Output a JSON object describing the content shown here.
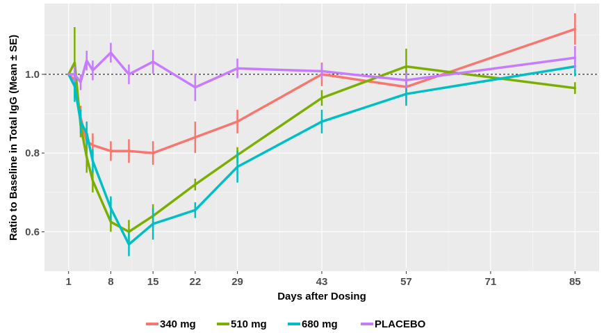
{
  "chart_data": {
    "type": "line",
    "xlabel": "Days after Dosing",
    "ylabel": "Ratio to Baseline in Total IgG (Mean ± SE)",
    "x_ticks": [
      1,
      8,
      15,
      22,
      29,
      43,
      57,
      71,
      85
    ],
    "y_ticks": [
      0.6,
      0.8,
      1.0
    ],
    "y_tick_labels": [
      "0.6",
      "0.8",
      "1.0"
    ],
    "xlim": [
      -3,
      89
    ],
    "ylim": [
      0.5,
      1.18
    ],
    "reference_line": 1.0,
    "grid": true,
    "legend_position": "bottom",
    "series": [
      {
        "name": "340 mg",
        "color": "#F8766D",
        "points": [
          {
            "x": 1,
            "y": 1.0,
            "se": 0.0
          },
          {
            "x": 2,
            "y": 0.985,
            "se": 0.02
          },
          {
            "x": 3,
            "y": 0.89,
            "se": 0.03
          },
          {
            "x": 4,
            "y": 0.83,
            "se": 0.03
          },
          {
            "x": 5,
            "y": 0.82,
            "se": 0.03
          },
          {
            "x": 8,
            "y": 0.805,
            "se": 0.025
          },
          {
            "x": 11,
            "y": 0.805,
            "se": 0.03
          },
          {
            "x": 15,
            "y": 0.8,
            "se": 0.03
          },
          {
            "x": 22,
            "y": 0.84,
            "se": 0.04
          },
          {
            "x": 29,
            "y": 0.88,
            "se": 0.03
          },
          {
            "x": 43,
            "y": 1.0,
            "se": 0.03
          },
          {
            "x": 57,
            "y": 0.968,
            "se": 0.04
          },
          {
            "x": 85,
            "y": 1.115,
            "se": 0.04
          }
        ]
      },
      {
        "name": "510 mg",
        "color": "#7CAE00",
        "points": [
          {
            "x": 1,
            "y": 1.0,
            "se": 0.0
          },
          {
            "x": 2,
            "y": 1.03,
            "se": 0.09
          },
          {
            "x": 3,
            "y": 0.87,
            "se": 0.03
          },
          {
            "x": 4,
            "y": 0.79,
            "se": 0.04
          },
          {
            "x": 5,
            "y": 0.73,
            "se": 0.03
          },
          {
            "x": 8,
            "y": 0.625,
            "se": 0.025
          },
          {
            "x": 11,
            "y": 0.6,
            "se": 0.03
          },
          {
            "x": 15,
            "y": 0.64,
            "se": 0.03
          },
          {
            "x": 22,
            "y": 0.72,
            "se": 0.015
          },
          {
            "x": 29,
            "y": 0.795,
            "se": 0.02
          },
          {
            "x": 43,
            "y": 0.94,
            "se": 0.02
          },
          {
            "x": 57,
            "y": 1.02,
            "se": 0.045
          },
          {
            "x": 85,
            "y": 0.965,
            "se": 0.015
          }
        ]
      },
      {
        "name": "680 mg",
        "color": "#00BFC4",
        "points": [
          {
            "x": 1,
            "y": 1.0,
            "se": 0.0
          },
          {
            "x": 2,
            "y": 0.97,
            "se": 0.04
          },
          {
            "x": 3,
            "y": 0.88,
            "se": 0.03
          },
          {
            "x": 4,
            "y": 0.85,
            "se": 0.03
          },
          {
            "x": 5,
            "y": 0.78,
            "se": 0.03
          },
          {
            "x": 8,
            "y": 0.66,
            "se": 0.03
          },
          {
            "x": 11,
            "y": 0.568,
            "se": 0.03
          },
          {
            "x": 15,
            "y": 0.62,
            "se": 0.04
          },
          {
            "x": 22,
            "y": 0.655,
            "se": 0.02
          },
          {
            "x": 29,
            "y": 0.765,
            "se": 0.04
          },
          {
            "x": 43,
            "y": 0.88,
            "se": 0.03
          },
          {
            "x": 57,
            "y": 0.95,
            "se": 0.03
          },
          {
            "x": 85,
            "y": 1.02,
            "se": 0.025
          }
        ]
      },
      {
        "name": "PLACEBO",
        "color": "#C77CFF",
        "points": [
          {
            "x": 1,
            "y": 1.0,
            "se": 0.0
          },
          {
            "x": 2,
            "y": 1.0,
            "se": 0.02
          },
          {
            "x": 3,
            "y": 0.98,
            "se": 0.02
          },
          {
            "x": 4,
            "y": 1.035,
            "se": 0.025
          },
          {
            "x": 5,
            "y": 1.01,
            "se": 0.025
          },
          {
            "x": 8,
            "y": 1.055,
            "se": 0.025
          },
          {
            "x": 11,
            "y": 1.0,
            "se": 0.025
          },
          {
            "x": 15,
            "y": 1.032,
            "se": 0.03
          },
          {
            "x": 22,
            "y": 0.967,
            "se": 0.035
          },
          {
            "x": 29,
            "y": 1.015,
            "se": 0.025
          },
          {
            "x": 43,
            "y": 1.008,
            "se": 0.02
          },
          {
            "x": 57,
            "y": 0.985,
            "se": 0.02
          },
          {
            "x": 85,
            "y": 1.042,
            "se": 0.03
          }
        ]
      }
    ]
  }
}
